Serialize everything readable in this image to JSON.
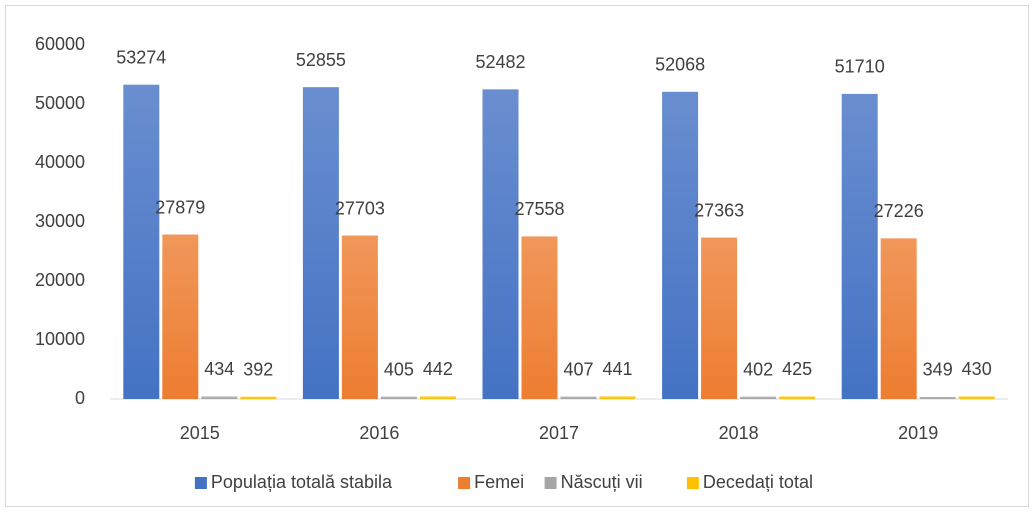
{
  "chart_data": {
    "type": "bar",
    "categories": [
      "2015",
      "2016",
      "2017",
      "2018",
      "2019"
    ],
    "series": [
      {
        "name": "Populația totală stabila",
        "color": "#4472c4",
        "values": [
          53274,
          52855,
          52482,
          52068,
          51710
        ]
      },
      {
        "name": "Femei",
        "color": "#ed7d31",
        "values": [
          27879,
          27703,
          27558,
          27363,
          27226
        ]
      },
      {
        "name": "Născuți vii",
        "color": "#a5a5a5",
        "values": [
          434,
          405,
          407,
          402,
          349
        ]
      },
      {
        "name": "Decedați total",
        "color": "#ffc000",
        "values": [
          392,
          442,
          441,
          425,
          430
        ]
      }
    ],
    "ylim": [
      0,
      60000
    ],
    "yticks": [
      0,
      10000,
      20000,
      30000,
      40000,
      50000,
      60000
    ],
    "grid": false,
    "legend": "bottom",
    "data_labels": true
  }
}
